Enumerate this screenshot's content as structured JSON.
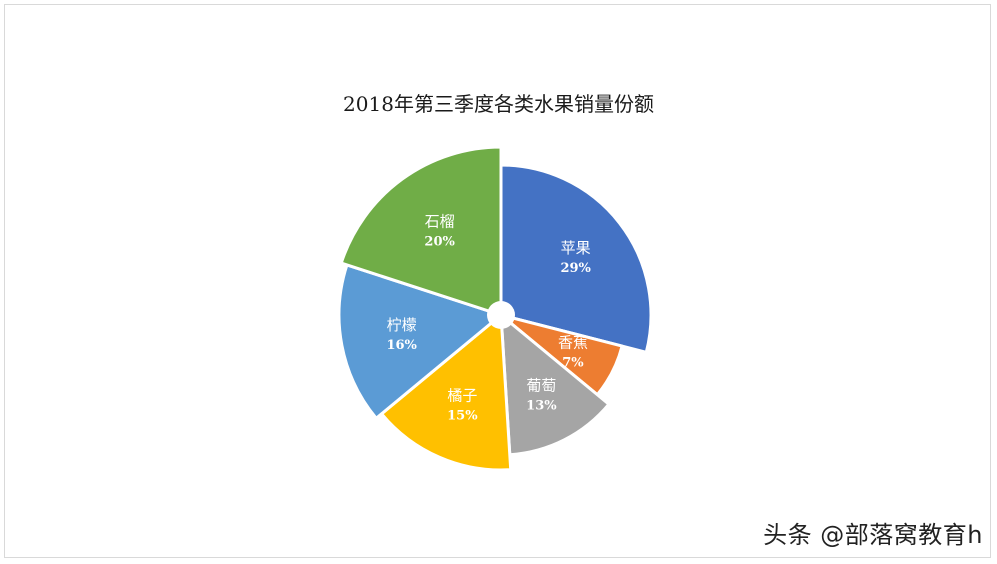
{
  "watermark": "头条 @部落窝教育h",
  "chart_data": {
    "type": "pie",
    "title": "2018年第三季度各类水果销量份额",
    "categories": [
      "苹果",
      "香蕉",
      "葡萄",
      "橘子",
      "柠檬",
      "石榴"
    ],
    "values": [
      29,
      7,
      13,
      15,
      16,
      20
    ],
    "value_labels": [
      "29%",
      "7%",
      "13%",
      "15%",
      "16%",
      "20%"
    ],
    "colors": [
      "#4472C4",
      "#ED7D31",
      "#A5A5A5",
      "#FFC000",
      "#5B9BD5",
      "#70AD47"
    ],
    "radius_rank": [
      3,
      1,
      2,
      4,
      5,
      6
    ],
    "legend": "none",
    "style": "rose (variable radius), donut hole"
  }
}
